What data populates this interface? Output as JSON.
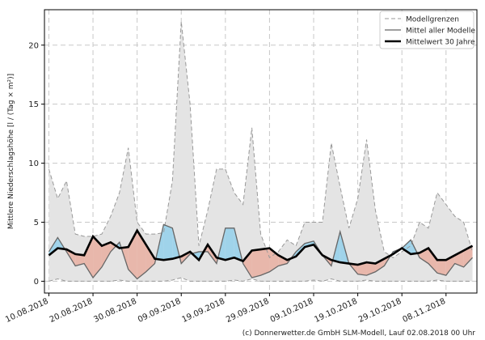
{
  "chart_data": {
    "type": "line",
    "y_label": "Mittlere Niederschlagshöhe [l / (Tag × m²)]",
    "footer": "(c) Donnerwetter.de GmbH SLM-Modell, Lauf 02.08.2018 00 Uhr",
    "x": [
      "2018-08-10",
      "2018-08-12",
      "2018-08-14",
      "2018-08-16",
      "2018-08-18",
      "2018-08-20",
      "2018-08-22",
      "2018-08-24",
      "2018-08-26",
      "2018-08-28",
      "2018-08-30",
      "2018-09-01",
      "2018-09-03",
      "2018-09-05",
      "2018-09-07",
      "2018-09-09",
      "2018-09-11",
      "2018-09-13",
      "2018-09-15",
      "2018-09-17",
      "2018-09-19",
      "2018-09-21",
      "2018-09-23",
      "2018-09-25",
      "2018-09-27",
      "2018-09-29",
      "2018-10-01",
      "2018-10-03",
      "2018-10-05",
      "2018-10-07",
      "2018-10-09",
      "2018-10-11",
      "2018-10-13",
      "2018-10-15",
      "2018-10-17",
      "2018-10-19",
      "2018-10-21",
      "2018-10-23",
      "2018-10-25",
      "2018-10-27",
      "2018-10-29",
      "2018-10-31",
      "2018-11-02",
      "2018-11-04",
      "2018-11-06",
      "2018-11-08",
      "2018-11-10",
      "2018-11-12",
      "2018-11-14"
    ],
    "series": [
      {
        "name": "Modellgrenzen",
        "color": "#999999",
        "fill": "#e4e4e4",
        "values": [
          9.5,
          7,
          8.5,
          4,
          3.8,
          3.8,
          4,
          5.5,
          7.5,
          11.3,
          5,
          4,
          4,
          4.1,
          8.5,
          22,
          15,
          3,
          6,
          9.5,
          9.5,
          7.5,
          6.5,
          13,
          4,
          2,
          2.5,
          3.5,
          3,
          5,
          5,
          5,
          11.7,
          8,
          4.5,
          7,
          12,
          6,
          2.5,
          2,
          2.5,
          3,
          5,
          4.5,
          7.5,
          6.5,
          5.5,
          5,
          2.5
        ],
        "lower": [
          0,
          0.2,
          0,
          0,
          0,
          0,
          0,
          0,
          0.1,
          0,
          0,
          0,
          0,
          0,
          0.1,
          0.3,
          0,
          0,
          0,
          0,
          0,
          0.1,
          0,
          0.2,
          0,
          0,
          0,
          0,
          0,
          0,
          0.1,
          0,
          0.2,
          0,
          0,
          0,
          0.1,
          0,
          0,
          0,
          0,
          0,
          0,
          0,
          0.1,
          0,
          0,
          0,
          0
        ]
      },
      {
        "name": "Mittel aller Modelle",
        "color": "#666666",
        "values": [
          2.5,
          3.7,
          2.5,
          1.3,
          1.5,
          0.3,
          1.2,
          2.5,
          3.3,
          1,
          0.2,
          0.8,
          1.5,
          4.8,
          4.5,
          1.5,
          2.3,
          2.5,
          2.5,
          1.5,
          4.5,
          4.5,
          1.5,
          0.3,
          0.5,
          0.8,
          1.3,
          1.5,
          2.5,
          3.2,
          3.4,
          2.2,
          1.3,
          4.2,
          1.5,
          0.6,
          0.5,
          0.8,
          1.3,
          2.5,
          2.8,
          3.5,
          2,
          1.5,
          0.7,
          0.5,
          1.5,
          1.2,
          2
        ]
      },
      {
        "name": "Mittelwert 30 Jahre",
        "color": "#000000",
        "values": [
          2.2,
          2.8,
          2.7,
          2.3,
          2.2,
          3.8,
          3,
          3.3,
          2.8,
          2.9,
          4.3,
          3.1,
          1.9,
          1.8,
          1.9,
          2.1,
          2.5,
          1.8,
          3.1,
          2,
          1.8,
          2,
          1.7,
          2.6,
          2.7,
          2.8,
          2.2,
          1.8,
          2.1,
          2.9,
          3.1,
          2.2,
          1.8,
          1.6,
          1.5,
          1.4,
          1.6,
          1.5,
          1.9,
          2.3,
          2.8,
          2.3,
          2.4,
          2.8,
          1.8,
          1.8,
          2.2,
          2.6,
          3
        ]
      }
    ],
    "above_color": "#9fd3ea",
    "below_color": "#e8b7ab",
    "xlim": [
      "2018-08-09",
      "2018-11-15"
    ],
    "xticks": [
      {
        "value": "2018-08-10",
        "label": "10.08.2018"
      },
      {
        "value": "2018-08-20",
        "label": "20.08.2018"
      },
      {
        "value": "2018-08-30",
        "label": "30.08.2018"
      },
      {
        "value": "2018-09-09",
        "label": "09.09.2018"
      },
      {
        "value": "2018-09-19",
        "label": "19.09.2018"
      },
      {
        "value": "2018-09-29",
        "label": "29.09.2018"
      },
      {
        "value": "2018-10-09",
        "label": "09.10.2018"
      },
      {
        "value": "2018-10-19",
        "label": "19.10.2018"
      },
      {
        "value": "2018-10-29",
        "label": "29.10.2018"
      },
      {
        "value": "2018-11-08",
        "label": "08.11.2018"
      }
    ],
    "ylim": [
      -1,
      23
    ],
    "yticks": [
      0,
      5,
      10,
      15,
      20
    ],
    "grid": true,
    "legend": "upper right"
  }
}
